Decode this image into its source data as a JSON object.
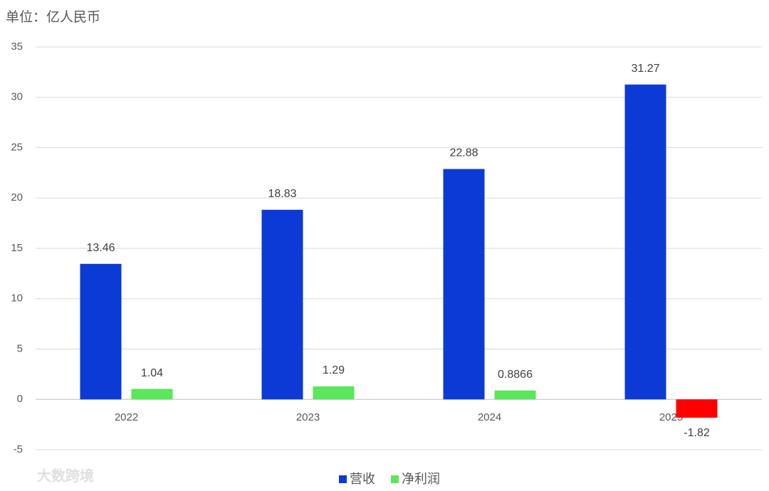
{
  "chart_data": {
    "type": "bar",
    "subtitle": "单位：亿人民币",
    "watermark": "大数跨境",
    "categories": [
      "2022",
      "2023",
      "2024",
      "2025"
    ],
    "series": [
      {
        "name": "营收",
        "color": "#0b3bd4",
        "values": [
          13.46,
          18.83,
          22.88,
          31.27
        ]
      },
      {
        "name": "净利润",
        "color": "#5be65b",
        "negative_color": "#ff0000",
        "values": [
          1.04,
          1.29,
          0.8866,
          -1.82
        ]
      }
    ],
    "ylim": [
      -5,
      35
    ],
    "yticks": [
      -5,
      0,
      5,
      10,
      15,
      20,
      25,
      30,
      35
    ],
    "grid": true,
    "legend": "bottom"
  }
}
